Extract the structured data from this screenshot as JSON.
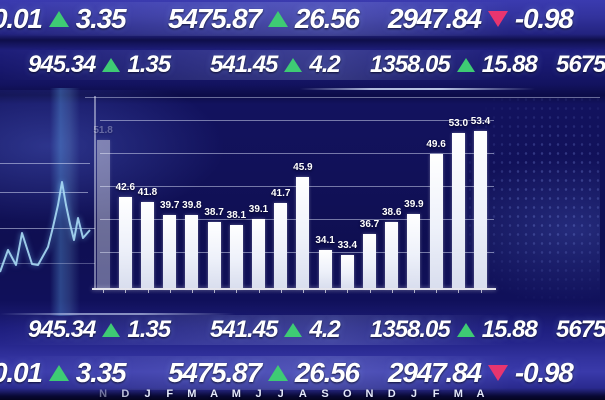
{
  "board": {
    "description": "Stock market ticker display with monthly bar chart",
    "colors": {
      "up_green": "#3ecb74",
      "down_pink": "#e8356f",
      "bar_white": "#f4f6ff",
      "text_white": "#ffffff",
      "background_blue": "#12125e",
      "sparkline_cyan": "#aadcf5"
    }
  },
  "ticker_rows": {
    "row1": [
      {
        "value": "0.01",
        "direction": "up",
        "change": "3.35"
      },
      {
        "value": "5475.87",
        "direction": "up",
        "change": "26.56"
      },
      {
        "value": "2947.84",
        "direction": "down",
        "change": "-0.98"
      }
    ],
    "row2": [
      {
        "value": "945.34",
        "direction": "up",
        "change": "1.35"
      },
      {
        "value": "541.45",
        "direction": "up",
        "change": "4.2"
      },
      {
        "value": "1358.05",
        "direction": "up",
        "change": "15.88"
      },
      {
        "value": "5675",
        "direction": "none",
        "change": ""
      }
    ],
    "row3": [
      {
        "value": "945.34",
        "direction": "up",
        "change": "1.35"
      },
      {
        "value": "541.45",
        "direction": "up",
        "change": "4.2"
      },
      {
        "value": "1358.05",
        "direction": "up",
        "change": "15.88"
      },
      {
        "value": "5675",
        "direction": "none",
        "change": ""
      }
    ],
    "row4": [
      {
        "value": "0.01",
        "direction": "up",
        "change": "3.35"
      },
      {
        "value": "5475.87",
        "direction": "up",
        "change": "26.56"
      },
      {
        "value": "2947.84",
        "direction": "down",
        "change": "-0.98"
      }
    ]
  },
  "chart_data": {
    "type": "bar",
    "title": "",
    "xlabel": "",
    "ylabel": "",
    "categories": [
      "N",
      "D",
      "J",
      "F",
      "M",
      "A",
      "M",
      "J",
      "J",
      "A",
      "S",
      "O",
      "N",
      "D",
      "J",
      "F",
      "M",
      "A"
    ],
    "values": [
      51.8,
      42.6,
      41.8,
      39.7,
      39.8,
      38.7,
      38.1,
      39.1,
      41.7,
      45.9,
      34.1,
      33.4,
      36.7,
      38.6,
      39.9,
      49.6,
      53.0,
      53.4
    ],
    "value_labels": [
      "51.8",
      "42.6",
      "41.8",
      "39.7",
      "39.8",
      "38.7",
      "38.1",
      "39.1",
      "41.7",
      "45.9",
      "34.1",
      "33.4",
      "36.7",
      "38.6",
      "39.9",
      "49.6",
      "53.0",
      "53.4"
    ],
    "ylim": [
      28,
      56
    ],
    "grid": "horizontal",
    "legend_position": "none",
    "bar_color": "#f4f6ff",
    "first_bar_faded": true,
    "secondary_decoration": "unlabeled cyan sparkline at left edge"
  }
}
